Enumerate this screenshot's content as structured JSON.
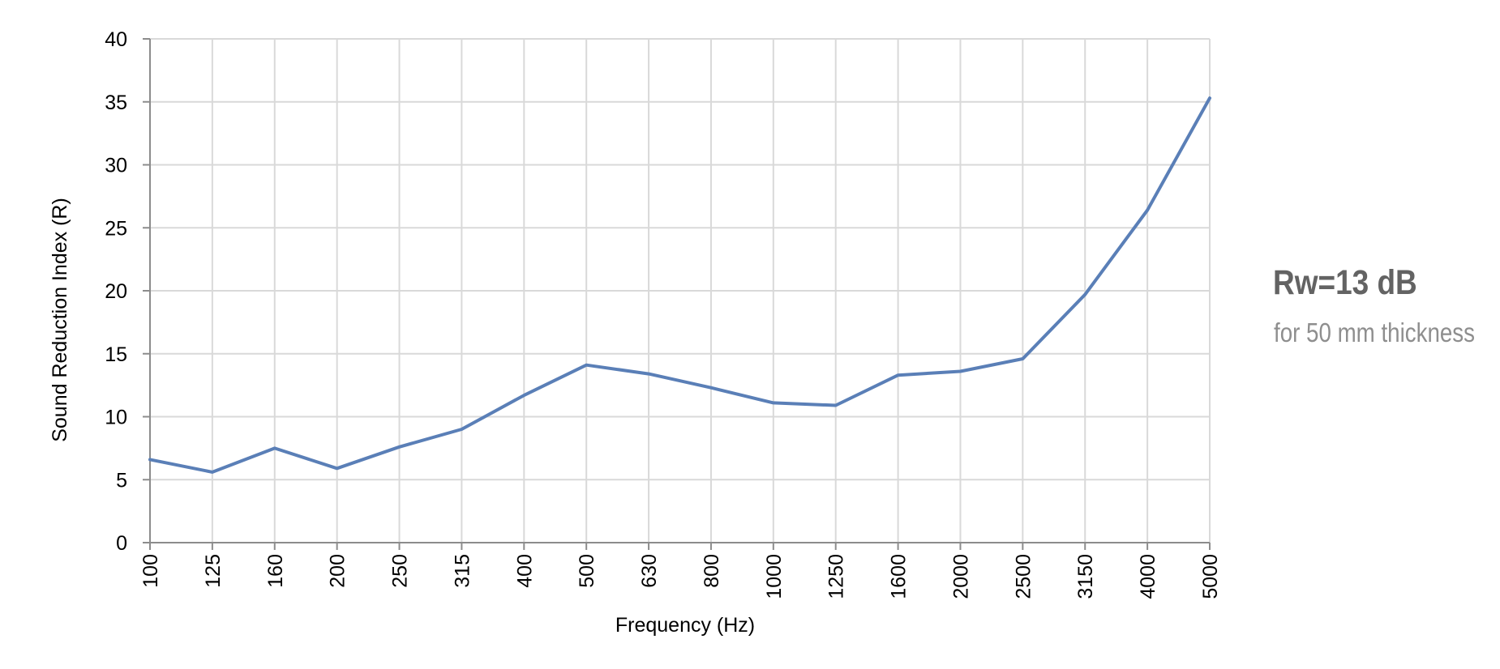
{
  "chart_data": {
    "type": "line",
    "title": "",
    "xlabel": "Frequency (Hz)",
    "ylabel": "Sound Reduction Index (R)",
    "categories": [
      "100",
      "125",
      "160",
      "200",
      "250",
      "315",
      "400",
      "500",
      "630",
      "800",
      "1000",
      "1250",
      "1600",
      "2000",
      "2500",
      "3150",
      "4000",
      "5000"
    ],
    "series": [
      {
        "values": [
          6.6,
          5.6,
          7.5,
          5.9,
          7.6,
          9.0,
          11.7,
          14.1,
          13.4,
          12.3,
          11.1,
          10.9,
          13.3,
          13.6,
          14.6,
          19.7,
          26.4,
          35.3
        ]
      }
    ],
    "ylim": [
      0,
      40
    ],
    "yticks": [
      0,
      5,
      10,
      15,
      20,
      25,
      30,
      35,
      40
    ],
    "grid": true,
    "legend": "none",
    "x_tick_rotation": "vertical",
    "colors": {
      "line": "#5a7fb7",
      "grid": "#d9d9d9",
      "axis": "#8c8c8c"
    }
  },
  "rating": {
    "value": "Rw=13 dB",
    "note": "for 50 mm thickness"
  }
}
